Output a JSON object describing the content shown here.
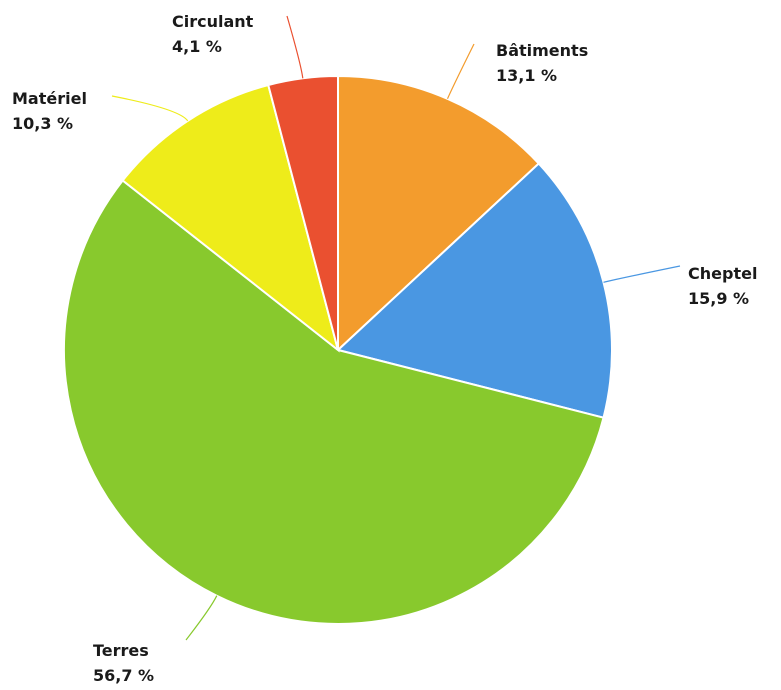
{
  "chart_data": {
    "type": "pie",
    "title": "",
    "start_angle_deg": 0,
    "direction": "clockwise",
    "legend": "none",
    "slices": [
      {
        "name": "Bâtiments",
        "label": "13,1 %",
        "value": 13.1,
        "color": "#f39c2d"
      },
      {
        "name": "Cheptel",
        "label": "15,9 %",
        "value": 15.9,
        "color": "#4a97e2"
      },
      {
        "name": "Terres",
        "label": "56,7 %",
        "value": 56.7,
        "color": "#88c92d"
      },
      {
        "name": "Matériel",
        "label": "10,3 %",
        "value": 10.3,
        "color": "#eeec1a"
      },
      {
        "name": "Circulant",
        "label": "4,1 %",
        "value": 4.1,
        "color": "#ea5030"
      }
    ]
  }
}
